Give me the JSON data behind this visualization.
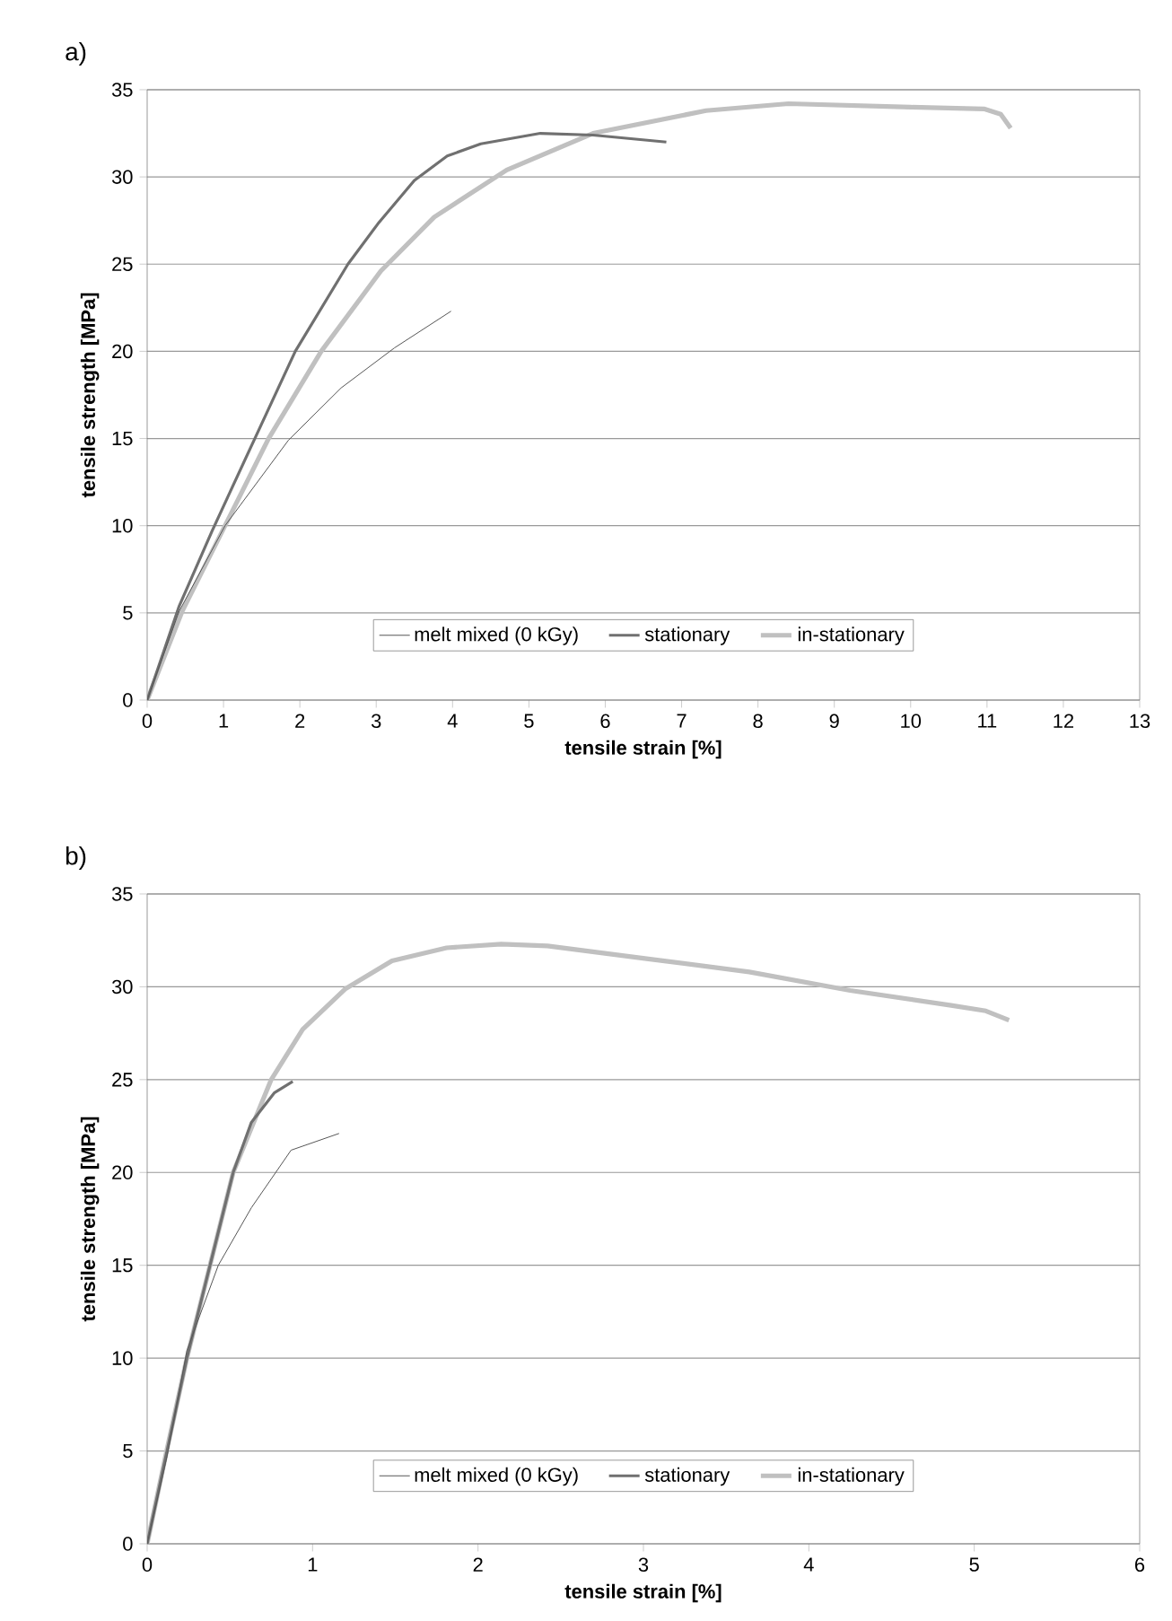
{
  "chart_data": [
    {
      "type": "line",
      "title": "a)",
      "xlabel": "tensile strain [%]",
      "ylabel": "tensile strength [MPa]",
      "xlim": [
        0,
        13
      ],
      "xticks": [
        0,
        1,
        2,
        3,
        4,
        5,
        6,
        7,
        8,
        9,
        10,
        11,
        12,
        13
      ],
      "ylim": [
        0,
        35
      ],
      "yticks": [
        0,
        5,
        10,
        15,
        20,
        25,
        30,
        35
      ],
      "grid": "y",
      "legend": "bottom",
      "marker": "none",
      "line_style": "solid",
      "series": [
        {
          "name": "melt mixed (0 kGy)",
          "color": "#555555",
          "x": [
            0,
            0.42,
            1.02,
            1.85,
            2.54,
            3.24,
            3.98
          ],
          "values": [
            0,
            5.1,
            10,
            14.9,
            17.9,
            20.2,
            22.3
          ]
        },
        {
          "name": "stationary",
          "color": "#707070",
          "x": [
            0,
            0.42,
            0.85,
            1.41,
            1.94,
            2.63,
            3.02,
            3.5,
            3.93,
            4.37,
            5.15,
            5.84,
            6.8
          ],
          "values": [
            0,
            5.4,
            9.7,
            15,
            20,
            25,
            27.3,
            29.8,
            31.2,
            31.9,
            32.5,
            32.4,
            32.0
          ]
        },
        {
          "name": "in-stationary",
          "color": "#c0c0c0",
          "x": [
            0,
            0.46,
            1.02,
            1.59,
            2.28,
            3.06,
            3.76,
            4.71,
            5.84,
            7.32,
            8.4,
            10.0,
            10.96,
            11.18,
            11.31
          ],
          "values": [
            0,
            5.1,
            10,
            15,
            20,
            24.6,
            27.7,
            30.4,
            32.5,
            33.8,
            34.2,
            34.0,
            33.9,
            33.6,
            32.8
          ]
        }
      ]
    },
    {
      "type": "line",
      "title": "b)",
      "xlabel": "tensile strain [%]",
      "ylabel": "tensile strength [MPa]",
      "xlim": [
        0,
        6
      ],
      "xticks": [
        0,
        1,
        2,
        3,
        4,
        5,
        6
      ],
      "ylim": [
        0,
        35
      ],
      "yticks": [
        0,
        5,
        10,
        15,
        20,
        25,
        30,
        35
      ],
      "grid": "y",
      "legend": "bottom",
      "marker": "none",
      "line_style": "solid",
      "series": [
        {
          "name": "melt mixed (0 kGy)",
          "color": "#555555",
          "x": [
            0,
            0.12,
            0.24,
            0.43,
            0.63,
            0.87,
            1.16
          ],
          "values": [
            0,
            4.7,
            10.4,
            15,
            18.1,
            21.2,
            22.1
          ]
        },
        {
          "name": "stationary",
          "color": "#707070",
          "x": [
            0,
            0.24,
            0.52,
            0.63,
            0.77,
            0.88
          ],
          "values": [
            0,
            10,
            20,
            22.7,
            24.3,
            24.9
          ]
        },
        {
          "name": "in-stationary",
          "color": "#c0c0c0",
          "x": [
            0,
            0.12,
            0.24,
            0.38,
            0.52,
            0.75,
            0.94,
            1.2,
            1.48,
            1.81,
            2.14,
            2.42,
            3.03,
            3.64,
            4.25,
            4.86,
            5.07,
            5.21
          ],
          "values": [
            0,
            5.1,
            10,
            15,
            20,
            25,
            27.7,
            29.9,
            31.4,
            32.1,
            32.3,
            32.2,
            31.5,
            30.8,
            29.8,
            29.0,
            28.7,
            28.2
          ]
        }
      ]
    }
  ]
}
